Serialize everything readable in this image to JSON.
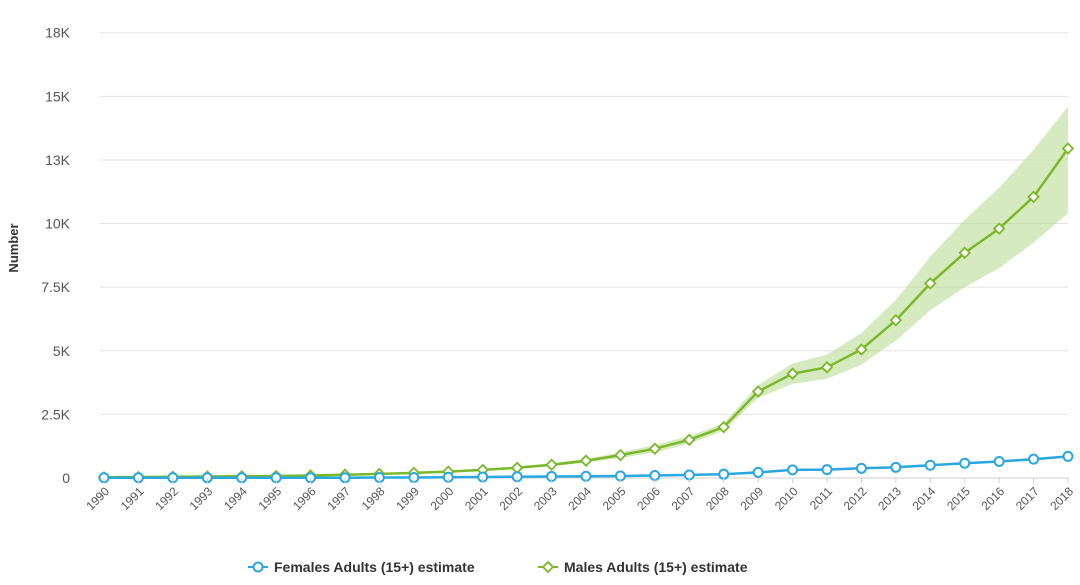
{
  "chart_data": {
    "type": "line",
    "ylabel": "Number",
    "xlabel": "",
    "ylim": [
      0,
      18000
    ],
    "y_ticks": [
      {
        "value": 0,
        "label": "0"
      },
      {
        "value": 2500,
        "label": "2.5K"
      },
      {
        "value": 5000,
        "label": "5K"
      },
      {
        "value": 7500,
        "label": "7.5K"
      },
      {
        "value": 10000,
        "label": "10K"
      },
      {
        "value": 12500,
        "label": "13K"
      },
      {
        "value": 15000,
        "label": "15K"
      },
      {
        "value": 17500,
        "label": "18K"
      }
    ],
    "x": [
      "1990",
      "1991",
      "1992",
      "1993",
      "1994",
      "1995",
      "1996",
      "1997",
      "1998",
      "1999",
      "2000",
      "2001",
      "2002",
      "2003",
      "2004",
      "2005",
      "2006",
      "2007",
      "2008",
      "2009",
      "2010",
      "2011",
      "2012",
      "2013",
      "2014",
      "2015",
      "2016",
      "2017",
      "2018"
    ],
    "grid": true,
    "legend_position": "bottom",
    "series": [
      {
        "name": "Females Adults (15+) estimate",
        "color": "#2aa7df",
        "marker": "circle",
        "values": [
          10,
          10,
          10,
          10,
          10,
          10,
          10,
          10,
          20,
          20,
          30,
          40,
          50,
          60,
          70,
          80,
          100,
          120,
          150,
          220,
          320,
          330,
          380,
          420,
          500,
          580,
          650,
          740,
          850
        ]
      },
      {
        "name": "Males Adults (15+) estimate",
        "color": "#7ab829",
        "band_color": "#b5d88a",
        "marker": "diamond",
        "values": [
          30,
          40,
          50,
          60,
          70,
          80,
          100,
          130,
          160,
          200,
          250,
          320,
          400,
          520,
          680,
          900,
          1150,
          1500,
          2000,
          3400,
          4100,
          4350,
          5050,
          6200,
          7650,
          8850,
          9800,
          11050,
          12950
        ],
        "lower": [
          30,
          40,
          50,
          60,
          70,
          80,
          100,
          120,
          150,
          190,
          230,
          290,
          360,
          460,
          600,
          790,
          1000,
          1350,
          1850,
          3150,
          3700,
          3900,
          4450,
          5400,
          6600,
          7500,
          8250,
          9250,
          10400
        ],
        "upper": [
          30,
          40,
          50,
          60,
          70,
          80,
          100,
          140,
          170,
          210,
          270,
          350,
          450,
          580,
          760,
          1000,
          1300,
          1650,
          2150,
          3650,
          4500,
          4850,
          5700,
          7000,
          8700,
          10150,
          11400,
          12900,
          14600
        ]
      }
    ]
  }
}
